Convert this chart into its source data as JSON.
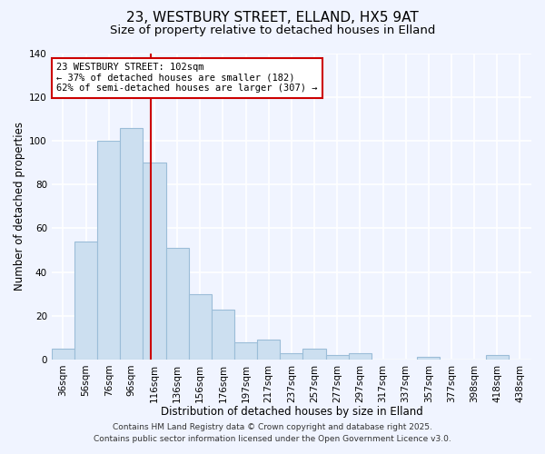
{
  "title": "23, WESTBURY STREET, ELLAND, HX5 9AT",
  "subtitle": "Size of property relative to detached houses in Elland",
  "xlabel": "Distribution of detached houses by size in Elland",
  "ylabel": "Number of detached properties",
  "bar_labels": [
    "36sqm",
    "56sqm",
    "76sqm",
    "96sqm",
    "116sqm",
    "136sqm",
    "156sqm",
    "176sqm",
    "197sqm",
    "217sqm",
    "237sqm",
    "257sqm",
    "277sqm",
    "297sqm",
    "317sqm",
    "337sqm",
    "357sqm",
    "377sqm",
    "398sqm",
    "418sqm",
    "438sqm"
  ],
  "bar_values": [
    5,
    54,
    100,
    106,
    90,
    51,
    30,
    23,
    8,
    9,
    3,
    5,
    2,
    3,
    0,
    0,
    1,
    0,
    0,
    2,
    0
  ],
  "bar_color": "#ccdff0",
  "bar_edge_color": "#9bbdd8",
  "ylim": [
    0,
    140
  ],
  "yticks": [
    0,
    20,
    40,
    60,
    80,
    100,
    120,
    140
  ],
  "vline_x_index": 3.85,
  "vline_color": "#cc0000",
  "annotation_title": "23 WESTBURY STREET: 102sqm",
  "annotation_line1": "← 37% of detached houses are smaller (182)",
  "annotation_line2": "62% of semi-detached houses are larger (307) →",
  "annotation_box_color": "#ffffff",
  "annotation_box_edge": "#cc0000",
  "footer1": "Contains HM Land Registry data © Crown copyright and database right 2025.",
  "footer2": "Contains public sector information licensed under the Open Government Licence v3.0.",
  "background_color": "#f0f4ff",
  "grid_color": "#ffffff",
  "title_fontsize": 11,
  "subtitle_fontsize": 9.5,
  "axis_label_fontsize": 8.5,
  "tick_fontsize": 7.5,
  "footer_fontsize": 6.5,
  "annotation_fontsize": 7.5
}
